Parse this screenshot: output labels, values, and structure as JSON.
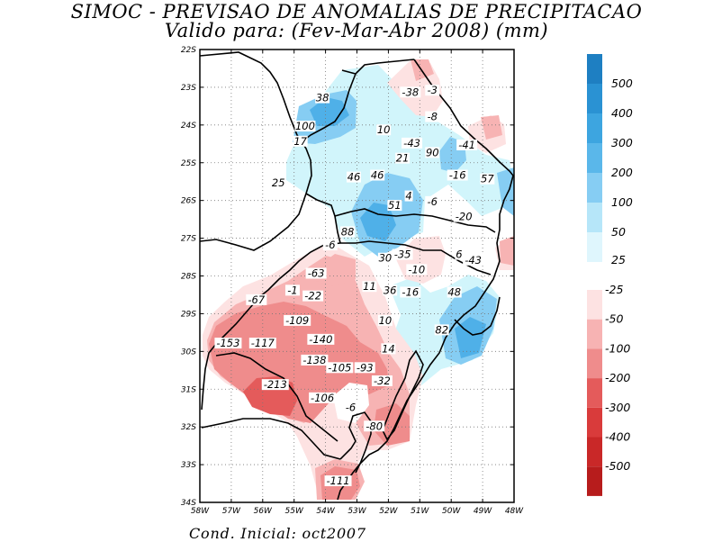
{
  "title_line1": "SIMOC - PREVISAO DE ANOMALIAS DE PRECIPITACAO",
  "title_line2": "Valido para: (Fev-Mar-Abr 2008) (mm)",
  "footer": "Cond. Inicial: oct2007",
  "chart_data": {
    "type": "heatmap",
    "title": "SIMOC - PREVISAO DE ANOMALIAS DE PRECIPITACAO",
    "subtitle": "Valido para: (Fev-Mar-Abr 2008) (mm)",
    "variable": "precipitation anomaly (mm)",
    "xlim": [
      -58,
      -48
    ],
    "ylim": [
      -34,
      -22
    ],
    "x_ticks": [
      -58,
      -57,
      -56,
      -55,
      -54,
      -53,
      -52,
      -51,
      -50,
      -49,
      -48
    ],
    "x_tick_labels": [
      "58W",
      "57W",
      "56W",
      "55W",
      "54W",
      "53W",
      "52W",
      "51W",
      "50W",
      "49W",
      "48W"
    ],
    "y_ticks": [
      -22,
      -23,
      -24,
      -25,
      -26,
      -27,
      -28,
      -29,
      -30,
      -31,
      -32,
      -33,
      -34
    ],
    "y_tick_labels": [
      "22S",
      "23S",
      "24S",
      "25S",
      "26S",
      "27S",
      "28S",
      "29S",
      "30S",
      "31S",
      "32S",
      "33S",
      "34S"
    ],
    "grid": true,
    "legend": {
      "position": "right",
      "labels": [
        "500",
        "400",
        "300",
        "200",
        "100",
        "50",
        "25",
        "-25",
        "-50",
        "-100",
        "-200",
        "-300",
        "-400",
        "-500"
      ],
      "colors": [
        "#1e7fc2",
        "#2a92d3",
        "#3da5e0",
        "#5ab7ea",
        "#86cdf3",
        "#b6e6f9",
        "#dff6fd",
        "#fde2e2",
        "#f7b3b3",
        "#ef8c8c",
        "#e45b5b",
        "#d93b3b",
        "#c92828",
        "#b71c1c"
      ]
    },
    "fill_colors": {
      "light_blue": "#d1f5fb",
      "mid_blue": "#86cdf3",
      "dark_blue": "#4fb0e8",
      "light_red": "#fde2e2",
      "mid_red": "#f7b3b3",
      "red": "#ef8c8c",
      "dark_red": "#e45b5b"
    },
    "contour_labels": [
      {
        "lon": -51.3,
        "lat": -23.2,
        "value": "-38"
      },
      {
        "lon": -50.6,
        "lat": -23.15,
        "value": "-3"
      },
      {
        "lon": -54.1,
        "lat": -23.35,
        "value": "38"
      },
      {
        "lon": -50.6,
        "lat": -23.85,
        "value": "-8"
      },
      {
        "lon": -54.65,
        "lat": -24.1,
        "value": "100"
      },
      {
        "lon": -52.15,
        "lat": -24.2,
        "value": "10"
      },
      {
        "lon": -51.25,
        "lat": -24.55,
        "value": "-43"
      },
      {
        "lon": -49.5,
        "lat": -24.6,
        "value": "-41"
      },
      {
        "lon": -54.8,
        "lat": -24.5,
        "value": "17"
      },
      {
        "lon": -50.6,
        "lat": -24.8,
        "value": "90"
      },
      {
        "lon": -51.55,
        "lat": -24.95,
        "value": "21"
      },
      {
        "lon": -49.8,
        "lat": -25.4,
        "value": "-16"
      },
      {
        "lon": -48.85,
        "lat": -25.5,
        "value": "57"
      },
      {
        "lon": -53.1,
        "lat": -25.45,
        "value": "46"
      },
      {
        "lon": -52.35,
        "lat": -25.4,
        "value": "46"
      },
      {
        "lon": -55.5,
        "lat": -25.6,
        "value": "25"
      },
      {
        "lon": -51.35,
        "lat": -25.95,
        "value": "4"
      },
      {
        "lon": -50.6,
        "lat": -26.1,
        "value": "-6"
      },
      {
        "lon": -51.8,
        "lat": -26.2,
        "value": "51"
      },
      {
        "lon": -49.6,
        "lat": -26.5,
        "value": "-20"
      },
      {
        "lon": -53.3,
        "lat": -26.9,
        "value": "88"
      },
      {
        "lon": -53.85,
        "lat": -27.25,
        "value": "-6"
      },
      {
        "lon": -51.55,
        "lat": -27.5,
        "value": "-35"
      },
      {
        "lon": -52.1,
        "lat": -27.6,
        "value": "30"
      },
      {
        "lon": -49.75,
        "lat": -27.5,
        "value": "6"
      },
      {
        "lon": -49.3,
        "lat": -27.65,
        "value": "-43"
      },
      {
        "lon": -51.1,
        "lat": -27.9,
        "value": "-10"
      },
      {
        "lon": -54.3,
        "lat": -28.0,
        "value": "-63"
      },
      {
        "lon": -52.6,
        "lat": -28.35,
        "value": "11"
      },
      {
        "lon": -51.95,
        "lat": -28.45,
        "value": "36"
      },
      {
        "lon": -51.3,
        "lat": -28.5,
        "value": "-16"
      },
      {
        "lon": -55.05,
        "lat": -28.45,
        "value": "-1"
      },
      {
        "lon": -54.4,
        "lat": -28.6,
        "value": "-22"
      },
      {
        "lon": -49.9,
        "lat": -28.5,
        "value": "48"
      },
      {
        "lon": -56.2,
        "lat": -28.7,
        "value": "-67"
      },
      {
        "lon": -54.9,
        "lat": -29.25,
        "value": "-109"
      },
      {
        "lon": -52.1,
        "lat": -29.25,
        "value": "10"
      },
      {
        "lon": -50.3,
        "lat": -29.5,
        "value": "82"
      },
      {
        "lon": -54.15,
        "lat": -29.75,
        "value": "-140"
      },
      {
        "lon": -57.1,
        "lat": -29.85,
        "value": "-153"
      },
      {
        "lon": -56.0,
        "lat": -29.85,
        "value": "-117"
      },
      {
        "lon": -52.0,
        "lat": -30.0,
        "value": "14"
      },
      {
        "lon": -54.35,
        "lat": -30.3,
        "value": "-138"
      },
      {
        "lon": -53.55,
        "lat": -30.5,
        "value": "-105"
      },
      {
        "lon": -52.75,
        "lat": -30.5,
        "value": "-93"
      },
      {
        "lon": -52.2,
        "lat": -30.85,
        "value": "-32"
      },
      {
        "lon": -55.6,
        "lat": -30.95,
        "value": "-213"
      },
      {
        "lon": -54.1,
        "lat": -31.3,
        "value": "-106"
      },
      {
        "lon": -53.2,
        "lat": -31.55,
        "value": "-6"
      },
      {
        "lon": -52.45,
        "lat": -32.05,
        "value": "-80"
      },
      {
        "lon": -53.6,
        "lat": -33.5,
        "value": "-111"
      }
    ]
  }
}
